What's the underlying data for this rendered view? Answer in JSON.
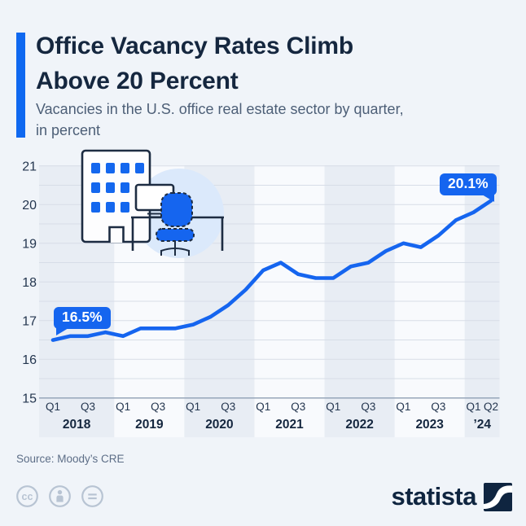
{
  "header": {
    "title_lines": [
      "Office Vacancy Rates Climb",
      "Above 20 Percent"
    ],
    "subtitle_lines": [
      "Vacancies in the U.S. office real estate sector by quarter,",
      "in percent"
    ]
  },
  "chart_data": {
    "type": "line",
    "title": "Office Vacancy Rates Climb Above 20 Percent",
    "subtitle": "Vacancies in the U.S. office real estate sector by quarter, in percent",
    "unit": "percent",
    "categories": [
      "Q1 2018",
      "Q2 2018",
      "Q3 2018",
      "Q4 2018",
      "Q1 2019",
      "Q2 2019",
      "Q3 2019",
      "Q4 2019",
      "Q1 2020",
      "Q2 2020",
      "Q3 2020",
      "Q4 2020",
      "Q1 2021",
      "Q2 2021",
      "Q3 2021",
      "Q4 2021",
      "Q1 2022",
      "Q2 2022",
      "Q3 2022",
      "Q4 2022",
      "Q1 2023",
      "Q2 2023",
      "Q3 2023",
      "Q4 2023",
      "Q1 2024",
      "Q2 2024"
    ],
    "values": [
      16.5,
      16.6,
      16.6,
      16.7,
      16.6,
      16.8,
      16.8,
      16.8,
      16.9,
      17.1,
      17.4,
      17.8,
      18.3,
      18.5,
      18.2,
      18.1,
      18.1,
      18.4,
      18.5,
      18.8,
      19.0,
      18.9,
      19.2,
      19.6,
      19.8,
      20.1
    ],
    "ylim": [
      15,
      21
    ],
    "yticks": [
      15,
      16,
      17,
      18,
      19,
      20,
      21
    ],
    "grid": "on",
    "grid_step": 0.5,
    "legend": "none",
    "line_color": "#1565ef",
    "annotations": [
      {
        "index": 0,
        "label": "16.5%"
      },
      {
        "index": 25,
        "label": "20.1%"
      }
    ],
    "x_axis_years": [
      {
        "label": "2018",
        "start_index": 0,
        "ticks": [
          "Q1",
          "Q3"
        ],
        "shaded": true
      },
      {
        "label": "2019",
        "start_index": 4,
        "ticks": [
          "Q1",
          "Q3"
        ],
        "shaded": false
      },
      {
        "label": "2020",
        "start_index": 8,
        "ticks": [
          "Q1",
          "Q3"
        ],
        "shaded": true
      },
      {
        "label": "2021",
        "start_index": 12,
        "ticks": [
          "Q1",
          "Q3"
        ],
        "shaded": false
      },
      {
        "label": "2022",
        "start_index": 16,
        "ticks": [
          "Q1",
          "Q3"
        ],
        "shaded": true
      },
      {
        "label": "2023",
        "start_index": 20,
        "ticks": [
          "Q1",
          "Q3"
        ],
        "shaded": false
      },
      {
        "label": "’24",
        "start_index": 24,
        "ticks": [
          "Q1",
          "Q2"
        ],
        "shaded": true
      }
    ]
  },
  "footer": {
    "source": "Source: Moody’s CRE",
    "license_icons": [
      "cc-icon",
      "attribution-icon",
      "no-derivatives-icon"
    ],
    "brand": "statista"
  },
  "colors": {
    "background": "#f0f4f9",
    "accent_blue": "#0f68f0",
    "line_blue": "#1565ef",
    "title_navy": "#15273f",
    "subtitle_gray": "#4d5f77",
    "band_shaded": "#e8edf4",
    "band_plain": "#f8fafd",
    "gridline": "#d7dde7",
    "axis_baseline": "#8fa0b4",
    "tick_text": "#24364f",
    "source_text": "#5d6e87",
    "license_icon": "#b8c4d3",
    "brand_navy": "#0f2540"
  }
}
